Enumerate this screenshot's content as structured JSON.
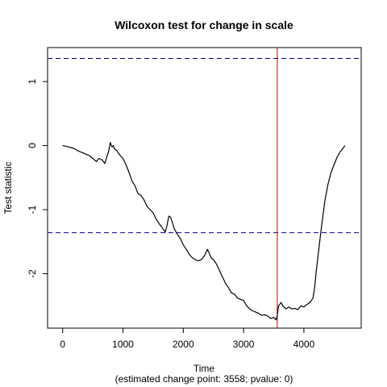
{
  "chart_data": {
    "type": "line",
    "title": "Wilcoxon test for change in scale",
    "xlabel": "Time",
    "subtitle": "(estimated change point: 3558; pvalue: 0)",
    "ylabel": "Test statistic",
    "xlim": [
      -250,
      4950
    ],
    "ylim": [
      -2.85,
      1.53
    ],
    "x_ticks": [
      0,
      1000,
      2000,
      3000,
      4000
    ],
    "y_ticks": [
      -2,
      -1,
      0,
      1
    ],
    "threshold_lines": {
      "values": [
        1.36,
        -1.36
      ],
      "color": "#00008B",
      "style": "dashed"
    },
    "change_point": {
      "x": 3558,
      "color": "#CC0000"
    },
    "series": [
      {
        "color": "#000000",
        "x": [
          0,
          100,
          200,
          250,
          300,
          350,
          400,
          450,
          500,
          560,
          600,
          650,
          700,
          730,
          760,
          790,
          800,
          820,
          840,
          860,
          900,
          950,
          1000,
          1050,
          1100,
          1150,
          1200,
          1250,
          1300,
          1350,
          1400,
          1450,
          1500,
          1550,
          1600,
          1650,
          1700,
          1730,
          1760,
          1790,
          1800,
          1820,
          1850,
          1900,
          1950,
          2000,
          2050,
          2100,
          2150,
          2200,
          2250,
          2300,
          2350,
          2400,
          2430,
          2460,
          2500,
          2550,
          2600,
          2650,
          2700,
          2750,
          2800,
          2850,
          2900,
          3000,
          3050,
          3100,
          3150,
          3200,
          3250,
          3300,
          3350,
          3400,
          3450,
          3500,
          3540,
          3558,
          3580,
          3600,
          3620,
          3650,
          3700,
          3750,
          3800,
          3850,
          3900,
          3950,
          4000,
          4050,
          4100,
          4150,
          4180,
          4200,
          4250,
          4300,
          4350,
          4400,
          4450,
          4500,
          4550,
          4600,
          4650,
          4680
        ],
        "y": [
          0.0,
          -0.02,
          -0.05,
          -0.08,
          -0.1,
          -0.12,
          -0.14,
          -0.16,
          -0.2,
          -0.25,
          -0.2,
          -0.22,
          -0.28,
          -0.18,
          -0.1,
          0.05,
          0.02,
          -0.02,
          0.0,
          -0.05,
          -0.08,
          -0.15,
          -0.2,
          -0.3,
          -0.42,
          -0.55,
          -0.63,
          -0.75,
          -0.78,
          -0.85,
          -0.95,
          -1.0,
          -1.05,
          -1.15,
          -1.22,
          -1.28,
          -1.35,
          -1.25,
          -1.1,
          -1.12,
          -1.15,
          -1.2,
          -1.3,
          -1.38,
          -1.45,
          -1.55,
          -1.62,
          -1.7,
          -1.75,
          -1.78,
          -1.8,
          -1.78,
          -1.72,
          -1.62,
          -1.68,
          -1.75,
          -1.78,
          -1.85,
          -1.95,
          -2.05,
          -2.15,
          -2.22,
          -2.3,
          -2.32,
          -2.38,
          -2.42,
          -2.5,
          -2.55,
          -2.58,
          -2.6,
          -2.62,
          -2.65,
          -2.64,
          -2.66,
          -2.7,
          -2.68,
          -2.72,
          -2.65,
          -2.5,
          -2.48,
          -2.45,
          -2.5,
          -2.55,
          -2.52,
          -2.55,
          -2.54,
          -2.56,
          -2.5,
          -2.52,
          -2.48,
          -2.45,
          -2.38,
          -2.2,
          -2.0,
          -1.6,
          -1.2,
          -0.85,
          -0.6,
          -0.42,
          -0.3,
          -0.18,
          -0.1,
          -0.04,
          0.0
        ]
      }
    ]
  }
}
